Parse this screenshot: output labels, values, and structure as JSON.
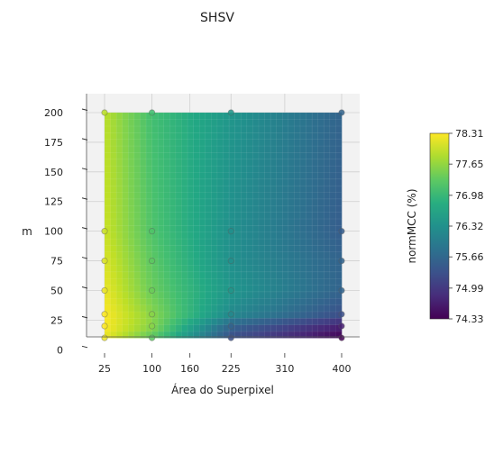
{
  "chart_data": {
    "type": "heatmap",
    "title": "SHSV",
    "xlabel": "Área do Superpixel",
    "ylabel": "m",
    "colorbar_label": "normMCC (%)",
    "colormap": "viridis",
    "x_ticks": [
      "25",
      "100",
      "160",
      "225",
      "310",
      "400"
    ],
    "x_tick_values": [
      25,
      100,
      160,
      225,
      310,
      400
    ],
    "y_ticks": [
      "0",
      "25",
      "50",
      "75",
      "100",
      "125",
      "150",
      "175",
      "200"
    ],
    "y_tick_values": [
      0,
      25,
      50,
      75,
      100,
      125,
      150,
      175,
      200
    ],
    "colorbar_ticks": [
      "78.31",
      "77.65",
      "76.98",
      "76.32",
      "75.66",
      "74.99",
      "74.33"
    ],
    "colorbar_tick_values": [
      78.31,
      77.65,
      76.98,
      76.32,
      75.66,
      74.99,
      74.33
    ],
    "xlim": [
      25,
      400
    ],
    "ylim": [
      10,
      200
    ],
    "zlim": [
      74.33,
      78.31
    ],
    "sample_x": [
      25,
      100,
      225,
      400
    ],
    "sample_y": [
      10,
      20,
      30,
      50,
      75,
      100,
      200
    ],
    "grid": true,
    "pane_color": "#f2f2f2",
    "points": [
      {
        "x": 25,
        "y": 200,
        "z": 77.9
      },
      {
        "x": 100,
        "y": 200,
        "z": 77.1
      },
      {
        "x": 225,
        "y": 200,
        "z": 76.4
      },
      {
        "x": 400,
        "y": 200,
        "z": 75.6
      },
      {
        "x": 25,
        "y": 100,
        "z": 78.0
      },
      {
        "x": 100,
        "y": 100,
        "z": 77.2
      },
      {
        "x": 225,
        "y": 100,
        "z": 76.3
      },
      {
        "x": 400,
        "y": 100,
        "z": 75.5
      },
      {
        "x": 25,
        "y": 75,
        "z": 78.1
      },
      {
        "x": 100,
        "y": 75,
        "z": 77.3
      },
      {
        "x": 225,
        "y": 75,
        "z": 76.3
      },
      {
        "x": 400,
        "y": 75,
        "z": 75.6
      },
      {
        "x": 25,
        "y": 50,
        "z": 78.2
      },
      {
        "x": 100,
        "y": 50,
        "z": 77.4
      },
      {
        "x": 225,
        "y": 50,
        "z": 76.4
      },
      {
        "x": 400,
        "y": 50,
        "z": 75.6
      },
      {
        "x": 25,
        "y": 30,
        "z": 78.3
      },
      {
        "x": 100,
        "y": 30,
        "z": 77.6
      },
      {
        "x": 225,
        "y": 30,
        "z": 76.2
      },
      {
        "x": 400,
        "y": 30,
        "z": 75.3
      },
      {
        "x": 25,
        "y": 20,
        "z": 78.3
      },
      {
        "x": 100,
        "y": 20,
        "z": 77.6
      },
      {
        "x": 225,
        "y": 20,
        "z": 75.6
      },
      {
        "x": 400,
        "y": 20,
        "z": 74.7
      },
      {
        "x": 25,
        "y": 10,
        "z": 78.2
      },
      {
        "x": 100,
        "y": 10,
        "z": 77.3
      },
      {
        "x": 225,
        "y": 10,
        "z": 75.3
      },
      {
        "x": 400,
        "y": 10,
        "z": 74.33
      }
    ]
  }
}
